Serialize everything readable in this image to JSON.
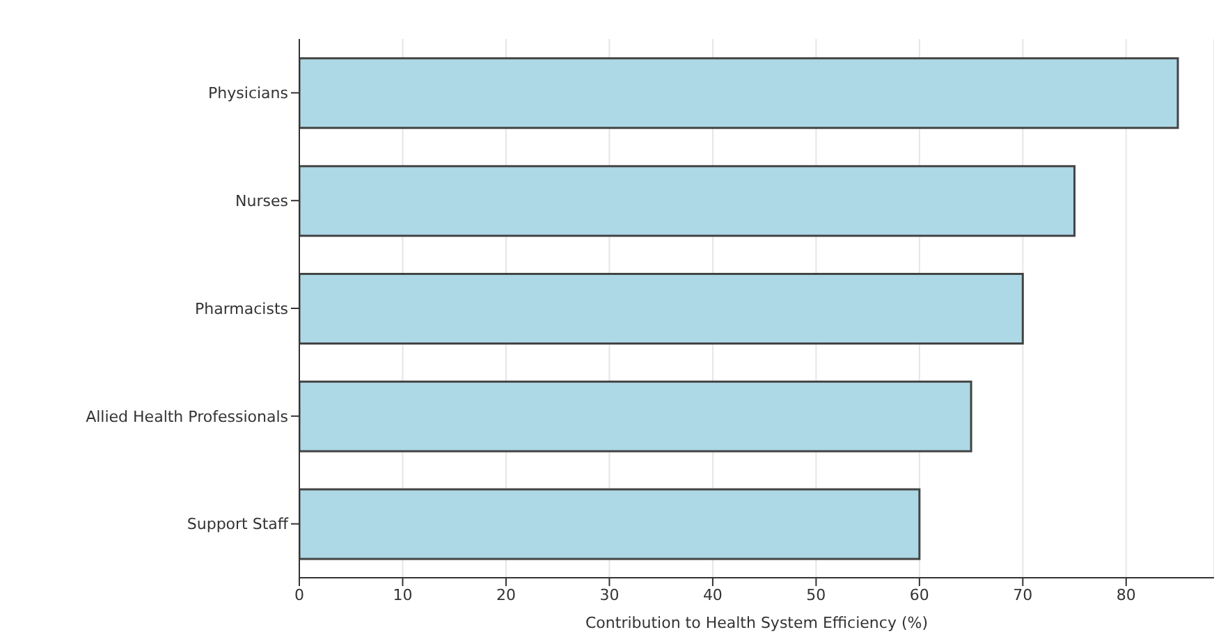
{
  "chart_data": {
    "type": "bar",
    "orientation": "horizontal",
    "categories": [
      "Physicians",
      "Nurses",
      "Pharmacists",
      "Allied Health Professionals",
      "Support Staff"
    ],
    "values": [
      85,
      75,
      70,
      65,
      60
    ],
    "color": "#add8e6",
    "xlabel": "Contribution to Health System Efficiency (%)",
    "xlim": [
      0,
      88.5
    ],
    "xticks": [
      0,
      10,
      20,
      30,
      40,
      50,
      60,
      70,
      80
    ],
    "grid": "x"
  }
}
